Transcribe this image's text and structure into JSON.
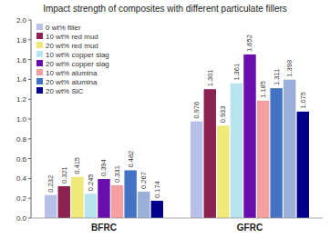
{
  "chart_data": {
    "type": "bar",
    "title": "Impact strength of composites with different particulate fillers",
    "categories": [
      "BFRC",
      "GFRC"
    ],
    "series": [
      {
        "name": "0 wt% filler",
        "color": "#b8bfe8",
        "values": [
          0.232,
          0.976
        ]
      },
      {
        "name": "10 wt% red mud",
        "color": "#8b2252",
        "values": [
          0.321,
          1.301
        ]
      },
      {
        "name": "20 wt% red mud",
        "color": "#f0e878",
        "values": [
          0.415,
          0.933
        ]
      },
      {
        "name": "10 wt% copper slag",
        "color": "#b8e4f0",
        "values": [
          0.245,
          1.361
        ]
      },
      {
        "name": "20 wt% copper slag",
        "color": "#6a0dad",
        "values": [
          0.394,
          1.652
        ]
      },
      {
        "name": "10 wt% alumina",
        "color": "#f4a0a0",
        "values": [
          0.331,
          1.185
        ]
      },
      {
        "name": "20 wt% alumina",
        "color": "#4472c4",
        "values": [
          0.482,
          1.311
        ]
      },
      {
        "name": null,
        "color": "#9ab0d8",
        "values": [
          0.267,
          1.398
        ]
      },
      {
        "name": "20 wt% SiC",
        "color": "#00008b",
        "values": [
          0.174,
          1.075
        ]
      }
    ],
    "ylim": [
      0,
      2.0
    ],
    "yticks": [
      {
        "value": 0,
        "label": "0.0"
      },
      0.2,
      0.4,
      0.6,
      0.8,
      {
        "value": 1.0,
        "label": "1.0"
      },
      1.2,
      1.4,
      1.6,
      1.8,
      {
        "value": 2.0,
        "label": "2.0"
      }
    ],
    "grid": false,
    "legend": "upper left",
    "data_labels": true
  }
}
